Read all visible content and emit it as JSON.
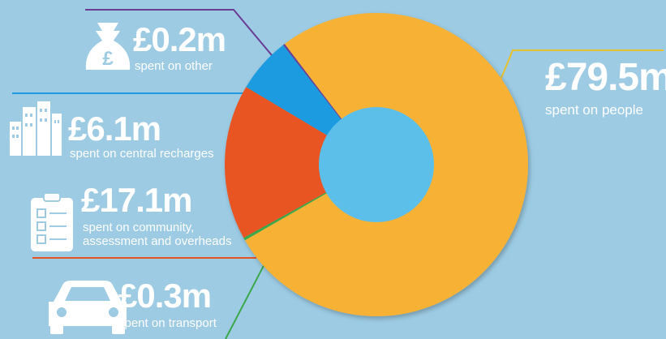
{
  "chart_data": {
    "type": "pie",
    "variant": "donut",
    "colors_note": "slice colors listed per item",
    "hole_color": "#5bbfea",
    "background": "#9ccbe3",
    "slices": [
      {
        "label": "£79.5m",
        "description": "spent on people",
        "value": 79.5,
        "color": "#f7b234",
        "icon": "none"
      },
      {
        "label": "£0.3m",
        "description": "spent on transport",
        "value": 0.3,
        "color": "#3aa84a",
        "icon": "car-icon"
      },
      {
        "label": "£17.1m",
        "description": "spent on community, assessment and overheads",
        "value": 17.1,
        "color": "#e85420",
        "icon": "clipboard-icon"
      },
      {
        "label": "£6.1m",
        "description": "spent on central recharges",
        "value": 6.1,
        "color": "#1e9be0",
        "icon": "buildings-icon"
      },
      {
        "label": "£0.2m",
        "description": "spent on other",
        "value": 0.2,
        "color": "#6a3c94",
        "icon": "money-bag-icon"
      }
    ]
  }
}
